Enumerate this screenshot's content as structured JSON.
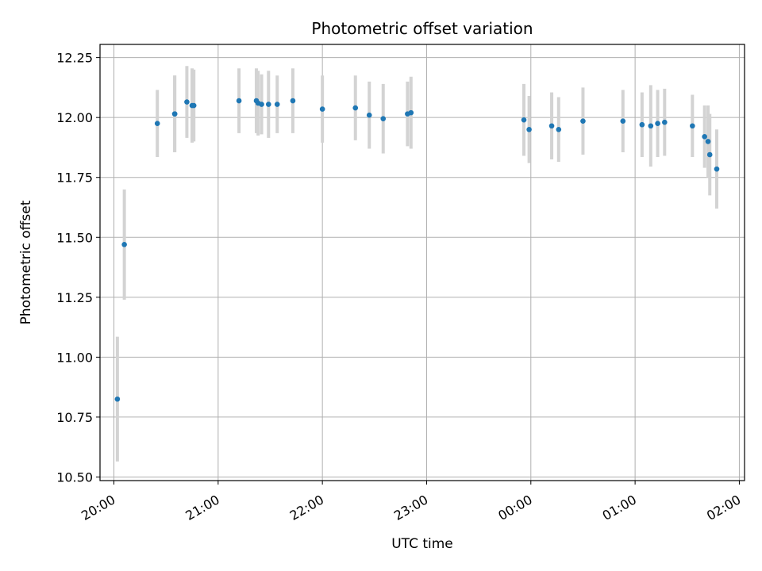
{
  "chart_data": {
    "type": "scatter",
    "title": "Photometric offset variation",
    "xlabel": "UTC time",
    "ylabel": "Photometric offset",
    "ylim": [
      10.485,
      12.305
    ],
    "xlim": [
      "19:52",
      "02:03"
    ],
    "grid": true,
    "x_tick_labels": [
      "20:00",
      "21:00",
      "22:00",
      "23:00",
      "00:00",
      "01:00",
      "02:00"
    ],
    "y_tick_labels": [
      "10.50",
      "10.75",
      "11.00",
      "11.25",
      "11.50",
      "11.75",
      "12.00",
      "12.25"
    ],
    "colors": {
      "point": "#1f77b4",
      "errorbar": "#d3d3d3",
      "grid": "#b0b0b0"
    },
    "points": [
      {
        "t": "20:02",
        "y": 10.825,
        "err": 0.26
      },
      {
        "t": "20:06",
        "y": 11.47,
        "err": 0.23
      },
      {
        "t": "20:25",
        "y": 11.975,
        "err": 0.14
      },
      {
        "t": "20:35",
        "y": 12.015,
        "err": 0.16
      },
      {
        "t": "20:35",
        "y": 12.015,
        "err": 0.16
      },
      {
        "t": "20:42",
        "y": 12.065,
        "err": 0.15
      },
      {
        "t": "20:45",
        "y": 12.05,
        "err": 0.155
      },
      {
        "t": "20:46",
        "y": 12.05,
        "err": 0.15
      },
      {
        "t": "21:12",
        "y": 12.07,
        "err": 0.135
      },
      {
        "t": "21:22",
        "y": 12.07,
        "err": 0.135
      },
      {
        "t": "21:23",
        "y": 12.06,
        "err": 0.135
      },
      {
        "t": "21:25",
        "y": 12.055,
        "err": 0.125
      },
      {
        "t": "21:29",
        "y": 12.055,
        "err": 0.14
      },
      {
        "t": "21:34",
        "y": 12.055,
        "err": 0.12
      },
      {
        "t": "21:43",
        "y": 12.07,
        "err": 0.135
      },
      {
        "t": "22:00",
        "y": 12.035,
        "err": 0.14
      },
      {
        "t": "22:19",
        "y": 12.04,
        "err": 0.135
      },
      {
        "t": "22:27",
        "y": 12.01,
        "err": 0.14
      },
      {
        "t": "22:35",
        "y": 11.995,
        "err": 0.145
      },
      {
        "t": "22:49",
        "y": 12.015,
        "err": 0.135
      },
      {
        "t": "22:51",
        "y": 12.02,
        "err": 0.15
      },
      {
        "t": "23:56",
        "y": 11.99,
        "err": 0.15
      },
      {
        "t": "23:59",
        "y": 11.95,
        "err": 0.14
      },
      {
        "t": "00:12",
        "y": 11.965,
        "err": 0.14
      },
      {
        "t": "00:16",
        "y": 11.95,
        "err": 0.135
      },
      {
        "t": "00:30",
        "y": 11.985,
        "err": 0.14
      },
      {
        "t": "00:53",
        "y": 11.985,
        "err": 0.13
      },
      {
        "t": "01:04",
        "y": 11.97,
        "err": 0.135
      },
      {
        "t": "01:09",
        "y": 11.965,
        "err": 0.17
      },
      {
        "t": "01:13",
        "y": 11.975,
        "err": 0.14
      },
      {
        "t": "01:17",
        "y": 11.98,
        "err": 0.14
      },
      {
        "t": "01:33",
        "y": 11.965,
        "err": 0.13
      },
      {
        "t": "01:40",
        "y": 11.92,
        "err": 0.13
      },
      {
        "t": "01:42",
        "y": 11.9,
        "err": 0.15
      },
      {
        "t": "01:43",
        "y": 11.845,
        "err": 0.17
      },
      {
        "t": "01:47",
        "y": 11.785,
        "err": 0.165
      }
    ]
  }
}
